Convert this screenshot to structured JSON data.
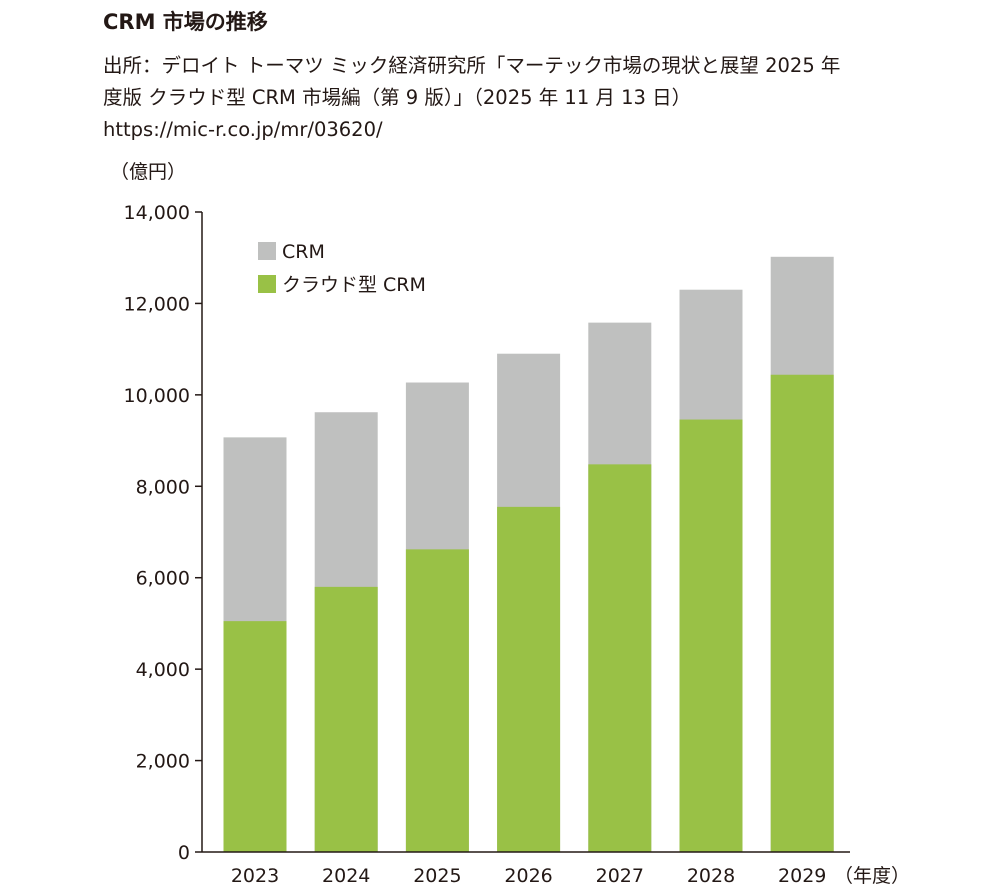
{
  "header": {
    "title": "CRM 市場の推移",
    "source_line1": "出所：デロイト トーマツ ミック経済研究所「マーテック市場の現状と展望 2025 年",
    "source_line2": "度版 クラウド型 CRM 市場編（第 9 版）」（2025 年 11 月 13 日）",
    "source_url": "https://mic-r.co.jp/mr/03620/"
  },
  "colors": {
    "crm_total": "#bfc0bf",
    "cloud_crm": "#99c146",
    "axis": "#231815"
  },
  "chart_data": {
    "type": "bar",
    "stacked": true,
    "ylabel": "（億円）",
    "xlabel_suffix": "（年度）",
    "ylim": [
      0,
      14000
    ],
    "yticks": [
      0,
      2000,
      4000,
      6000,
      8000,
      10000,
      12000,
      14000
    ],
    "ytick_labels": [
      "0",
      "2,000",
      "4,000",
      "6,000",
      "8,000",
      "10,000",
      "12,000",
      "14,000"
    ],
    "categories": [
      "2023",
      "2024",
      "2025",
      "2026",
      "2027",
      "2028",
      "2029"
    ],
    "legend_position": "top-left",
    "series": [
      {
        "name": "クラウド型 CRM",
        "color_key": "cloud_crm",
        "values": [
          5050,
          5800,
          6620,
          7550,
          8480,
          9460,
          10440
        ]
      },
      {
        "name": "CRM",
        "color_key": "crm_total",
        "totals": [
          9070,
          9620,
          10270,
          10900,
          11580,
          12300,
          13020
        ]
      }
    ]
  }
}
